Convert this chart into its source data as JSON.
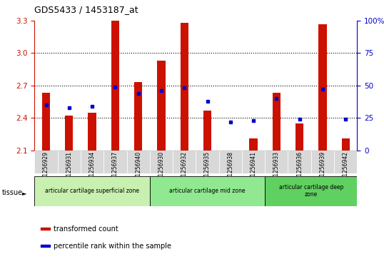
{
  "title": "GDS5433 / 1453187_at",
  "samples": [
    "GSM1256929",
    "GSM1256931",
    "GSM1256934",
    "GSM1256937",
    "GSM1256940",
    "GSM1256930",
    "GSM1256932",
    "GSM1256935",
    "GSM1256938",
    "GSM1256941",
    "GSM1256933",
    "GSM1256936",
    "GSM1256939",
    "GSM1256942"
  ],
  "transformed_count": [
    2.63,
    2.42,
    2.45,
    3.3,
    2.73,
    2.93,
    3.28,
    2.47,
    2.1,
    2.21,
    2.63,
    2.35,
    3.27,
    2.21
  ],
  "percentile_rank": [
    35,
    33,
    34,
    49,
    44,
    46,
    48,
    38,
    22,
    23,
    40,
    24,
    47,
    24
  ],
  "ymin": 2.1,
  "ymax": 3.3,
  "yticks_left": [
    2.1,
    2.4,
    2.7,
    3.0,
    3.3
  ],
  "yticks_right": [
    0,
    25,
    50,
    75,
    100
  ],
  "bar_color": "#cc1100",
  "dot_color": "#0000cc",
  "plot_bg": "#ffffff",
  "xtick_bg": "#d8d8d8",
  "tissue_groups": [
    {
      "label": "articular cartilage superficial zone",
      "start": 0,
      "end": 5,
      "color": "#c8f0b0"
    },
    {
      "label": "articular cartilage mid zone",
      "start": 5,
      "end": 10,
      "color": "#90e890"
    },
    {
      "label": "articular cartilage deep\nzone",
      "start": 10,
      "end": 14,
      "color": "#60d060"
    }
  ],
  "legend_items": [
    {
      "label": "transformed count",
      "color": "#cc1100"
    },
    {
      "label": "percentile rank within the sample",
      "color": "#0000cc"
    }
  ],
  "left_axis_color": "#cc1100",
  "right_axis_color": "#0000cc"
}
